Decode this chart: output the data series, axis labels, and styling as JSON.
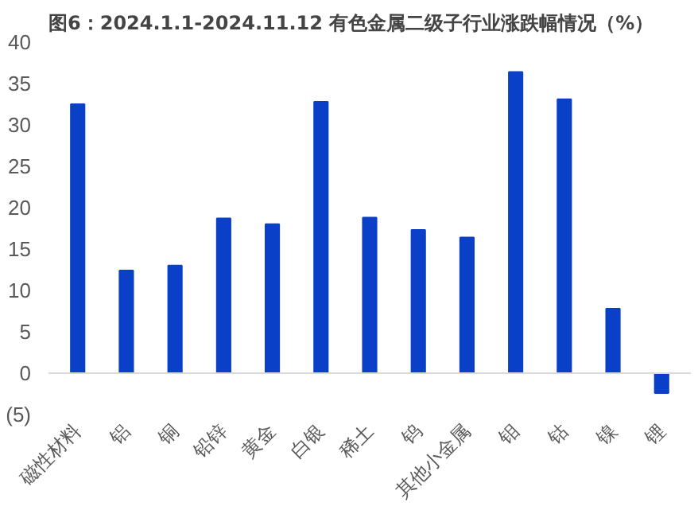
{
  "chart_data": {
    "type": "bar",
    "title": "图6：2024.1.1-2024.11.12 有色金属二级子行业涨跌幅情况（%）",
    "categories": [
      "磁性材料",
      "铝",
      "铜",
      "铅锌",
      "黄金",
      "白银",
      "稀土",
      "钨",
      "其他小金属",
      "钼",
      "钴",
      "镍",
      "锂"
    ],
    "values": [
      32.5,
      12.4,
      13.0,
      18.7,
      18.0,
      32.8,
      18.8,
      17.3,
      16.4,
      36.4,
      33.1,
      7.8,
      -2.4
    ],
    "color": "#0a40c8",
    "ylim": [
      -5,
      40
    ],
    "yticks": [
      {
        "value": -5,
        "label": "(5)"
      },
      0,
      5,
      10,
      15,
      20,
      25,
      30,
      35,
      40
    ],
    "grid": false
  }
}
